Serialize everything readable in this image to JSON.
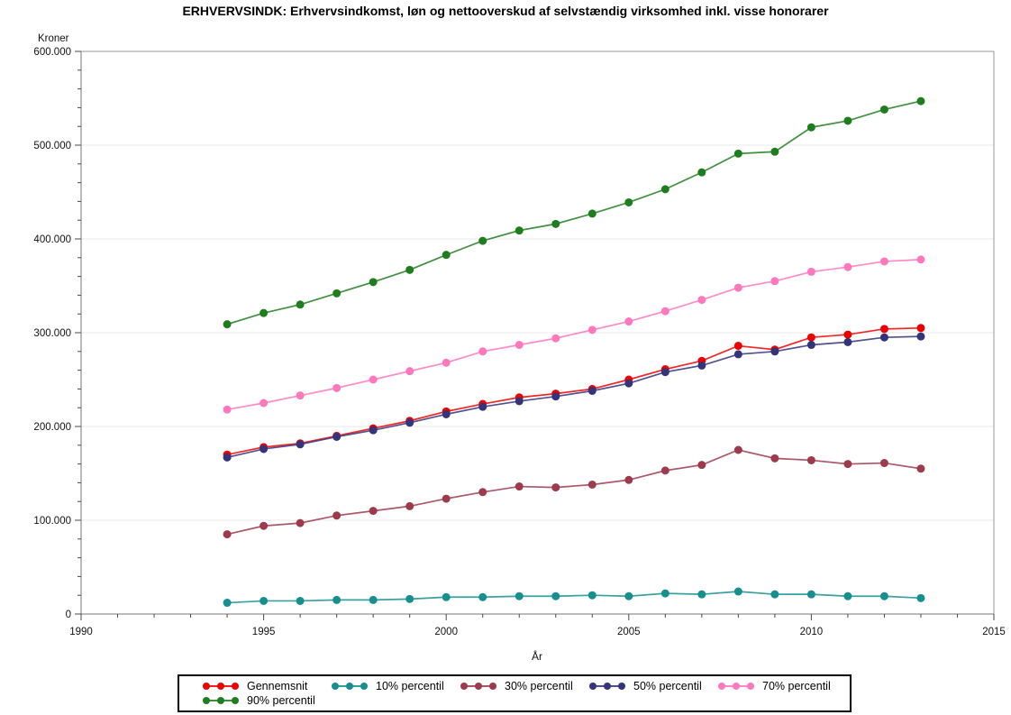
{
  "chart_data": {
    "type": "line",
    "title": "ERHVERVSINDK: Erhvervsindkomst, løn og nettooverskud af selvstændig virksomhed inkl. visse honorarer",
    "ylabel": "Kroner",
    "xlabel": "År",
    "x_range": [
      1990,
      2015
    ],
    "y_range": [
      0,
      600000
    ],
    "x_ticks": [
      {
        "v": 1990,
        "label": "1990"
      },
      {
        "v": 1995,
        "label": "1995"
      },
      {
        "v": 2000,
        "label": "2000"
      },
      {
        "v": 2005,
        "label": "2005"
      },
      {
        "v": 2010,
        "label": "2010"
      },
      {
        "v": 2015,
        "label": "2015"
      }
    ],
    "y_ticks": [
      {
        "v": 0,
        "label": "0"
      },
      {
        "v": 100000,
        "label": "100.000"
      },
      {
        "v": 200000,
        "label": "200.000"
      },
      {
        "v": 300000,
        "label": "300.000"
      },
      {
        "v": 400000,
        "label": "400.000"
      },
      {
        "v": 500000,
        "label": "500.000"
      },
      {
        "v": 600000,
        "label": "600.000"
      }
    ],
    "x_minor_step": 1,
    "y_minor_step": 20000,
    "grid": "horizontal-major",
    "legend_position": "bottom",
    "x": [
      1994,
      1995,
      1996,
      1997,
      1998,
      1999,
      2000,
      2001,
      2002,
      2003,
      2004,
      2005,
      2006,
      2007,
      2008,
      2009,
      2010,
      2011,
      2012,
      2013
    ],
    "series": [
      {
        "name": "Gennemsnit",
        "color": "#ee0000",
        "values": [
          170000,
          178000,
          182000,
          190000,
          198000,
          206000,
          216000,
          224000,
          231000,
          235000,
          240000,
          250000,
          261000,
          270000,
          286000,
          282000,
          295000,
          298000,
          304000,
          305000
        ]
      },
      {
        "name": "10% percentil",
        "color": "#178f8f",
        "values": [
          12000,
          14000,
          14000,
          15000,
          15000,
          16000,
          18000,
          18000,
          19000,
          19000,
          20000,
          19000,
          22000,
          21000,
          24000,
          21000,
          21000,
          19000,
          19000,
          17000
        ]
      },
      {
        "name": "30% percentil",
        "color": "#9d3b4d",
        "values": [
          85000,
          94000,
          97000,
          105000,
          110000,
          115000,
          123000,
          130000,
          136000,
          135000,
          138000,
          143000,
          153000,
          159000,
          175000,
          166000,
          164000,
          160000,
          161000,
          155000
        ]
      },
      {
        "name": "50% percentil",
        "color": "#34347a",
        "values": [
          167000,
          176000,
          181000,
          189000,
          196000,
          204000,
          213000,
          221000,
          227000,
          232000,
          238000,
          246000,
          258000,
          265000,
          277000,
          280000,
          287000,
          290000,
          295000,
          296000
        ]
      },
      {
        "name": "70% percentil",
        "color": "#ff77bd",
        "values": [
          218000,
          225000,
          233000,
          241000,
          250000,
          259000,
          268000,
          280000,
          287000,
          294000,
          303000,
          312000,
          323000,
          335000,
          348000,
          355000,
          365000,
          370000,
          376000,
          378000
        ]
      },
      {
        "name": "90% percentil",
        "color": "#1e7e1e",
        "values": [
          309000,
          321000,
          330000,
          342000,
          354000,
          367000,
          383000,
          398000,
          409000,
          416000,
          427000,
          439000,
          453000,
          471000,
          491000,
          493000,
          519000,
          526000,
          538000,
          547000
        ]
      }
    ],
    "colors": {
      "frame": "#9a9a9a",
      "axis": "#777777",
      "tick": "#4a4a4a",
      "grid": "#e9e9e9",
      "text": "#111111"
    }
  }
}
